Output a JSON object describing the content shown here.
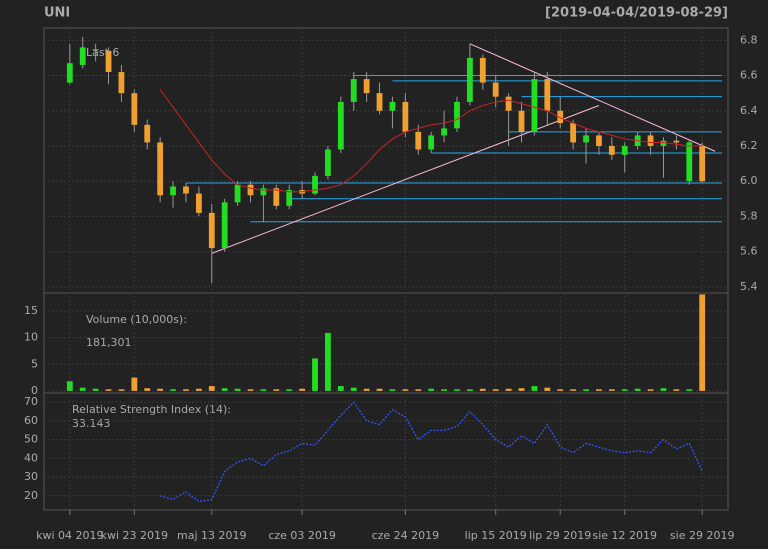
{
  "chart_data": {
    "type": "candlestick",
    "title": "UNI",
    "subtitle": "[2019-04-04/2019-08-29]",
    "last_label": "Last 6",
    "xticks": [
      {
        "value": 0,
        "label": "kwi 04 2019"
      },
      {
        "value": 5,
        "label": "kwi 23 2019"
      },
      {
        "value": 11,
        "label": "maj 13 2019"
      },
      {
        "value": 18,
        "label": "cze 03 2019"
      },
      {
        "value": 26,
        "label": "cze 24 2019"
      },
      {
        "value": 33,
        "label": "lip 15 2019"
      },
      {
        "value": 38,
        "label": "lip 29 2019"
      },
      {
        "value": 43,
        "label": "sie 12 2019"
      },
      {
        "value": 49,
        "label": "sie 29 2019"
      }
    ],
    "xlim": [
      -2,
      51
    ],
    "up_color": "#22dd22",
    "down_color": "#f0a030",
    "open": [
      6.56,
      6.66,
      6.75,
      6.74,
      6.62,
      6.5,
      6.32,
      6.22,
      5.92,
      5.97,
      5.93,
      5.82,
      5.62,
      5.88,
      5.98,
      5.92,
      5.96,
      5.86,
      5.95,
      5.93,
      6.03,
      6.18,
      6.45,
      6.58,
      6.5,
      6.4,
      6.45,
      6.28,
      6.18,
      6.26,
      6.3,
      6.45,
      6.7,
      6.56,
      6.48,
      6.4,
      6.28,
      6.58,
      6.4,
      6.33,
      6.22,
      6.26,
      6.2,
      6.15,
      6.2,
      6.26,
      6.2,
      6.23,
      6.0,
      6.2
    ],
    "high": [
      6.78,
      6.82,
      6.78,
      6.76,
      6.66,
      6.52,
      6.35,
      6.25,
      6.0,
      5.99,
      5.97,
      5.87,
      5.9,
      6.0,
      6.0,
      5.98,
      5.98,
      5.98,
      6.0,
      6.05,
      6.2,
      6.48,
      6.62,
      6.62,
      6.56,
      6.48,
      6.5,
      6.32,
      6.28,
      6.4,
      6.48,
      6.78,
      6.72,
      6.6,
      6.5,
      6.45,
      6.62,
      6.62,
      6.48,
      6.35,
      6.3,
      6.28,
      6.25,
      6.22,
      6.28,
      6.28,
      6.25,
      6.26,
      6.24,
      6.22
    ],
    "low": [
      6.55,
      6.64,
      6.68,
      6.55,
      6.45,
      6.28,
      6.18,
      5.88,
      5.85,
      5.88,
      5.8,
      5.42,
      5.6,
      5.86,
      5.88,
      5.77,
      5.84,
      5.84,
      5.9,
      5.92,
      6.01,
      6.16,
      6.4,
      6.45,
      6.38,
      6.3,
      6.25,
      6.15,
      6.16,
      6.22,
      6.28,
      6.43,
      6.52,
      6.42,
      6.2,
      6.22,
      6.26,
      6.32,
      6.3,
      6.18,
      6.1,
      6.15,
      6.12,
      6.05,
      6.18,
      6.15,
      6.02,
      6.18,
      5.98,
      5.99
    ],
    "close": [
      6.67,
      6.76,
      6.75,
      6.62,
      6.5,
      6.32,
      6.22,
      5.92,
      5.97,
      5.93,
      5.82,
      5.62,
      5.88,
      5.98,
      5.92,
      5.96,
      5.86,
      5.95,
      5.93,
      6.03,
      6.18,
      6.45,
      6.58,
      6.5,
      6.4,
      6.45,
      6.28,
      6.18,
      6.26,
      6.3,
      6.45,
      6.7,
      6.56,
      6.48,
      6.4,
      6.28,
      6.58,
      6.4,
      6.33,
      6.22,
      6.26,
      6.2,
      6.15,
      6.2,
      6.26,
      6.2,
      6.23,
      6.22,
      6.22,
      6.0
    ],
    "ma": {
      "color": "#cc2222",
      "values": [
        null,
        null,
        null,
        null,
        null,
        null,
        null,
        6.52,
        6.42,
        6.32,
        6.22,
        6.12,
        6.04,
        5.98,
        5.96,
        5.95,
        5.95,
        5.94,
        5.94,
        5.95,
        5.96,
        5.98,
        6.03,
        6.1,
        6.18,
        6.24,
        6.28,
        6.3,
        6.32,
        6.33,
        6.35,
        6.4,
        6.43,
        6.45,
        6.46,
        6.44,
        6.42,
        6.4,
        6.36,
        6.33,
        6.3,
        6.28,
        6.26,
        6.24,
        6.23,
        6.22,
        6.22,
        6.21,
        6.2,
        6.2
      ]
    },
    "hlines": [
      {
        "level": 6.6,
        "start": 22
      },
      {
        "level": 6.57,
        "start": 25
      },
      {
        "level": 6.48,
        "start": 35
      },
      {
        "level": 6.28,
        "start": 34
      },
      {
        "level": 6.16,
        "start": 28
      },
      {
        "level": 5.99,
        "start": 9
      },
      {
        "level": 5.9,
        "start": 17
      },
      {
        "level": 5.77,
        "start": 14
      }
    ],
    "trendlines": [
      {
        "x0": 11,
        "y0": 5.59,
        "x1": 41,
        "y1": 6.43
      },
      {
        "x0": 31,
        "y0": 6.78,
        "x1": 50,
        "y1": 6.17
      }
    ],
    "ylim": [
      5.365,
      6.87
    ],
    "yticks": [
      {
        "value": 6.8,
        "label": "6.8"
      },
      {
        "value": 6.6,
        "label": "6.6"
      },
      {
        "value": 6.4,
        "label": "6.4"
      },
      {
        "value": 6.2,
        "label": "6.2"
      },
      {
        "value": 6,
        "label": "6.0"
      },
      {
        "value": 5.8,
        "label": "5.8"
      },
      {
        "value": 5.6,
        "label": "5.6"
      },
      {
        "value": 5.4,
        "label": "5.4"
      }
    ],
    "volume": {
      "label": "Volume (10,000s):",
      "last_label": "181,301",
      "ylim": [
        -0.4,
        18.4
      ],
      "yticks": [
        0,
        5,
        10,
        15
      ],
      "values": [
        1.8,
        0.6,
        0.4,
        0.3,
        0.3,
        2.5,
        0.5,
        0.4,
        0.3,
        0.3,
        0.4,
        0.9,
        0.5,
        0.4,
        0.3,
        0.3,
        0.3,
        0.3,
        0.4,
        6.1,
        10.9,
        0.9,
        0.6,
        0.4,
        0.4,
        0.3,
        0.3,
        0.3,
        0.4,
        0.3,
        0.3,
        0.3,
        0.4,
        0.3,
        0.4,
        0.5,
        0.9,
        0.6,
        0.3,
        0.3,
        0.3,
        0.3,
        0.3,
        0.3,
        0.4,
        0.3,
        0.5,
        0.3,
        0.3,
        18.13
      ]
    },
    "rsi": {
      "label": "Relative Strength Index (14):",
      "color": "#3355ff",
      "ylim": [
        12.4,
        74.9
      ],
      "yticks": [
        20,
        30,
        40,
        50,
        60,
        70
      ],
      "values": [
        null,
        null,
        null,
        null,
        null,
        null,
        null,
        20,
        18,
        22,
        17,
        18,
        33,
        38,
        40,
        36,
        42,
        44,
        48,
        47,
        55,
        63,
        70,
        60,
        58,
        66,
        62,
        50,
        55,
        55,
        57,
        65,
        58,
        50,
        46,
        52,
        48,
        58,
        46,
        43,
        48,
        46,
        44,
        43,
        44,
        43,
        50,
        45,
        48,
        33.143
      ]
    }
  }
}
